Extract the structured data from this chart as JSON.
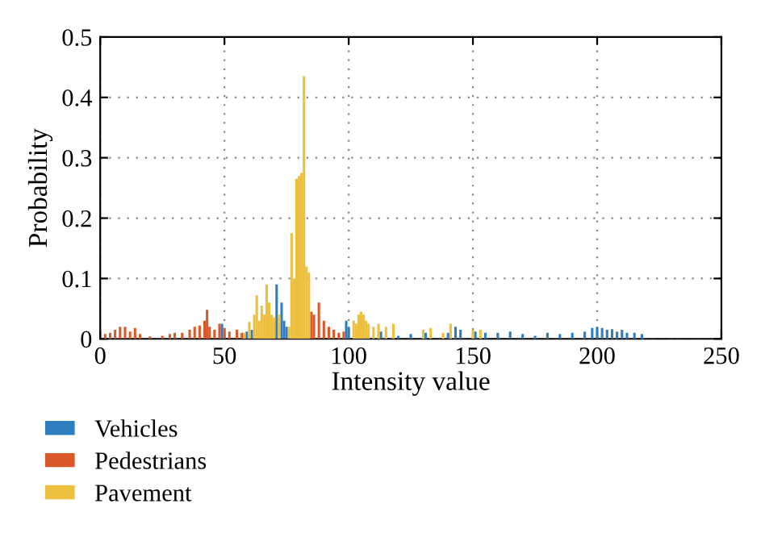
{
  "chart_data": {
    "type": "bar",
    "xlabel": "Intensity value",
    "ylabel": "Probability",
    "xlim": [
      0,
      250
    ],
    "ylim": [
      0,
      0.5
    ],
    "xticks": [
      0,
      50,
      100,
      150,
      200,
      250
    ],
    "yticks": [
      0,
      0.1,
      0.2,
      0.3,
      0.4,
      0.5
    ],
    "grid": true,
    "legend": "bottom",
    "series": [
      {
        "name": "Vehicles",
        "color": "#2e7ebf",
        "x": [
          49,
          59,
          61,
          71,
          73,
          74,
          75,
          99,
          100,
          113,
          120,
          125,
          131,
          140,
          143,
          145,
          151,
          155,
          160,
          165,
          170,
          175,
          180,
          185,
          190,
          195,
          198,
          200,
          202,
          204,
          206,
          208,
          210,
          212,
          215,
          218
        ],
        "values": [
          0.025,
          0.012,
          0.015,
          0.09,
          0.06,
          0.03,
          0.02,
          0.03,
          0.02,
          0.012,
          0.005,
          0.008,
          0.01,
          0.01,
          0.02,
          0.015,
          0.012,
          0.01,
          0.01,
          0.012,
          0.008,
          0.005,
          0.01,
          0.008,
          0.01,
          0.012,
          0.018,
          0.02,
          0.018,
          0.015,
          0.016,
          0.012,
          0.015,
          0.01,
          0.01,
          0.008
        ]
      },
      {
        "name": "Pedestrians",
        "color": "#d9592a",
        "x": [
          2,
          4,
          6,
          8,
          10,
          12,
          14,
          16,
          20,
          25,
          28,
          30,
          33,
          36,
          38,
          40,
          42,
          43,
          44,
          46,
          48,
          50,
          52,
          55,
          57,
          85,
          86,
          88,
          90,
          92,
          94,
          96,
          98
        ],
        "values": [
          0.008,
          0.01,
          0.015,
          0.02,
          0.02,
          0.012,
          0.018,
          0.008,
          0.004,
          0.005,
          0.008,
          0.01,
          0.01,
          0.015,
          0.02,
          0.022,
          0.03,
          0.048,
          0.02,
          0.015,
          0.025,
          0.018,
          0.012,
          0.015,
          0.01,
          0.045,
          0.04,
          0.06,
          0.03,
          0.02,
          0.015,
          0.01,
          0.012
        ]
      },
      {
        "name": "Pavement",
        "color": "#ecbf3c",
        "x": [
          58,
          60,
          62,
          63,
          64,
          65,
          66,
          67,
          68,
          69,
          70,
          72,
          76,
          77,
          78,
          79,
          80,
          81,
          82,
          83,
          84,
          102,
          103,
          104,
          105,
          106,
          107,
          108,
          110,
          112,
          115,
          118,
          130,
          133,
          138,
          141,
          150,
          153
        ],
        "values": [
          0.01,
          0.028,
          0.04,
          0.072,
          0.03,
          0.055,
          0.04,
          0.09,
          0.06,
          0.04,
          0.035,
          0.04,
          0.02,
          0.175,
          0.1,
          0.265,
          0.27,
          0.275,
          0.435,
          0.12,
          0.11,
          0.03,
          0.025,
          0.04,
          0.045,
          0.04,
          0.03,
          0.025,
          0.02,
          0.025,
          0.02,
          0.025,
          0.015,
          0.018,
          0.01,
          0.025,
          0.015,
          0.015
        ]
      }
    ]
  }
}
